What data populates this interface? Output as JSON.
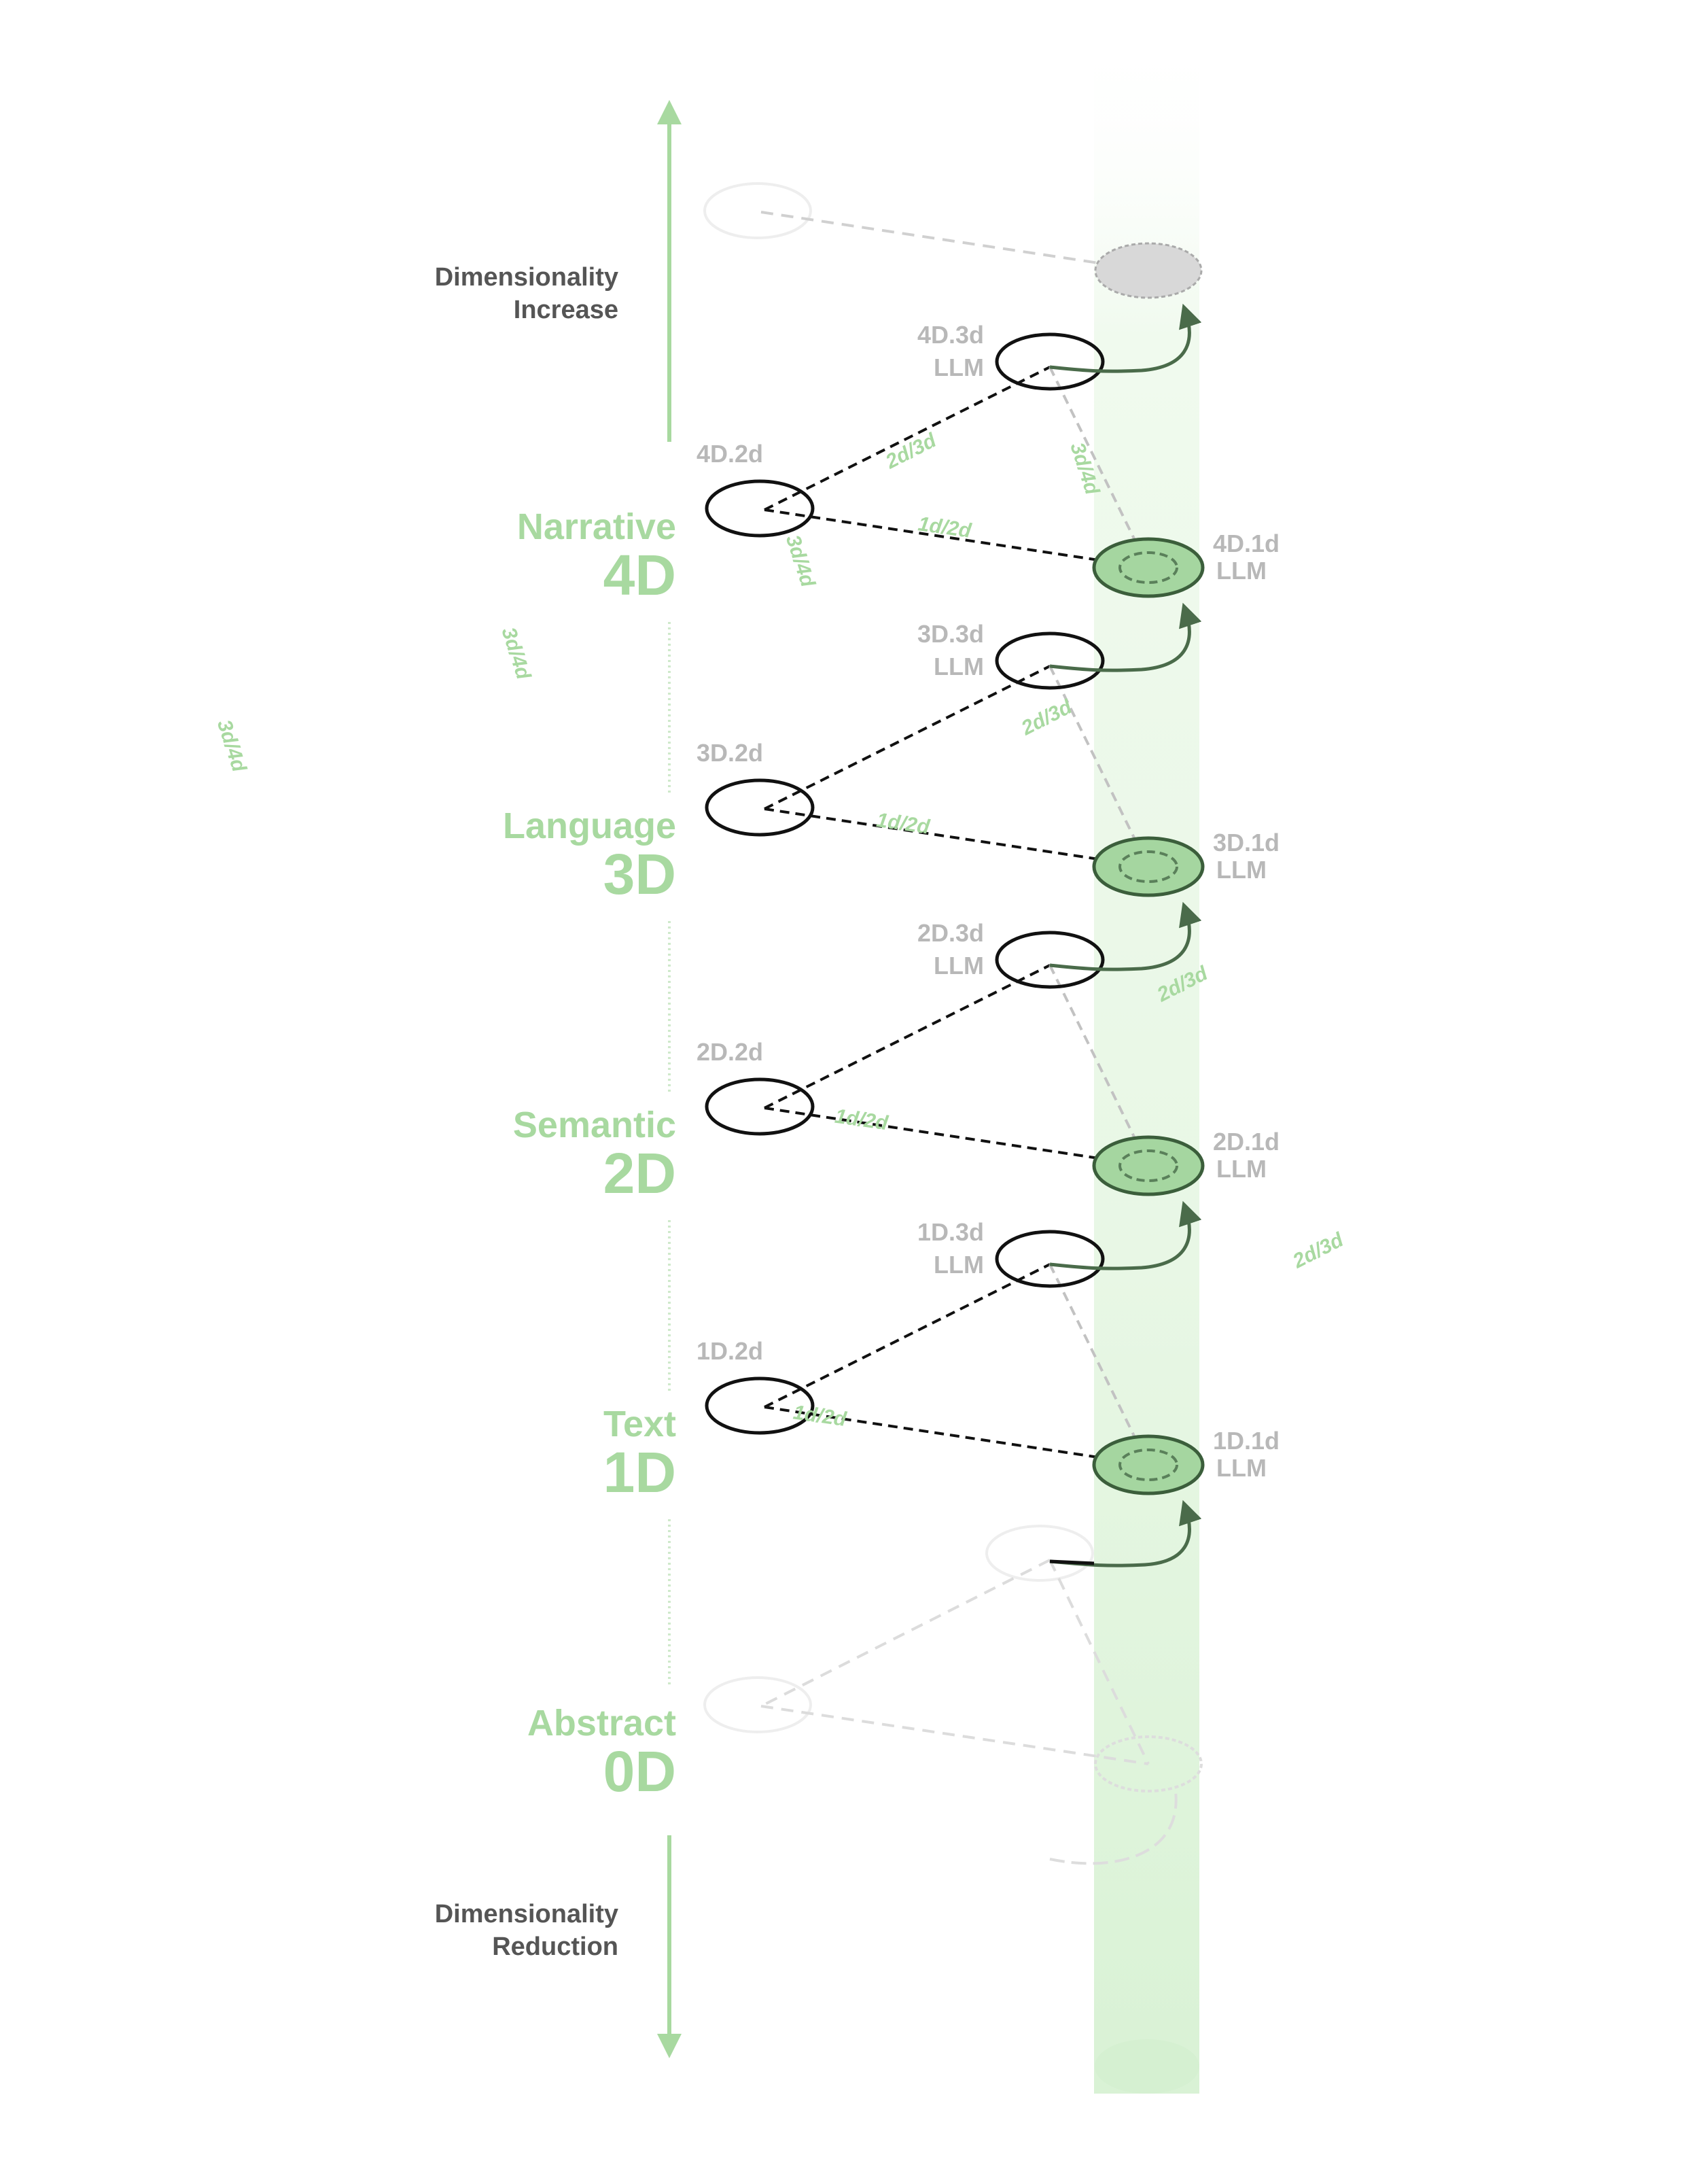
{
  "axis": {
    "increase_label": [
      "Dimensionality",
      "Increase"
    ],
    "reduction_label": [
      "Dimensionality",
      "Reduction"
    ]
  },
  "levels": [
    {
      "name": "Narrative",
      "dim": "4D"
    },
    {
      "name": "Language",
      "dim": "3D"
    },
    {
      "name": "Semantic",
      "dim": "2D"
    },
    {
      "name": "Text",
      "dim": "1D"
    },
    {
      "name": "Abstract",
      "dim": "0D"
    }
  ],
  "units": [
    {
      "level": "4D",
      "node_2d": "4D.2d",
      "node_3d": [
        "4D.3d",
        "LLM"
      ],
      "node_1d": [
        "4D.1d",
        "LLM"
      ]
    },
    {
      "level": "3D",
      "node_2d": "3D.2d",
      "node_3d": [
        "3D.3d",
        "LLM"
      ],
      "node_1d": [
        "3D.1d",
        "LLM"
      ]
    },
    {
      "level": "2D",
      "node_2d": "2D.2d",
      "node_3d": [
        "2D.3d",
        "LLM"
      ],
      "node_1d": [
        "2D.1d",
        "LLM"
      ]
    },
    {
      "level": "1D",
      "node_2d": "1D.2d",
      "node_3d": [
        "1D.3d",
        "LLM"
      ],
      "node_1d": [
        "1D.1d",
        "LLM"
      ]
    }
  ],
  "edge_labels": {
    "e12": "1d/2d",
    "e23": "2d/3d",
    "e34": "3d/4d"
  },
  "colors": {
    "accent_green": "#a8d9a0",
    "column_green": "#ddf3da",
    "node_fill_green": "#a5d6a0",
    "arrow_dark_green": "#4a6b4a",
    "node_label_grey": "#b8b8b8",
    "side_label_grey": "#555555",
    "top_node_grey": "#d8d8d8"
  }
}
